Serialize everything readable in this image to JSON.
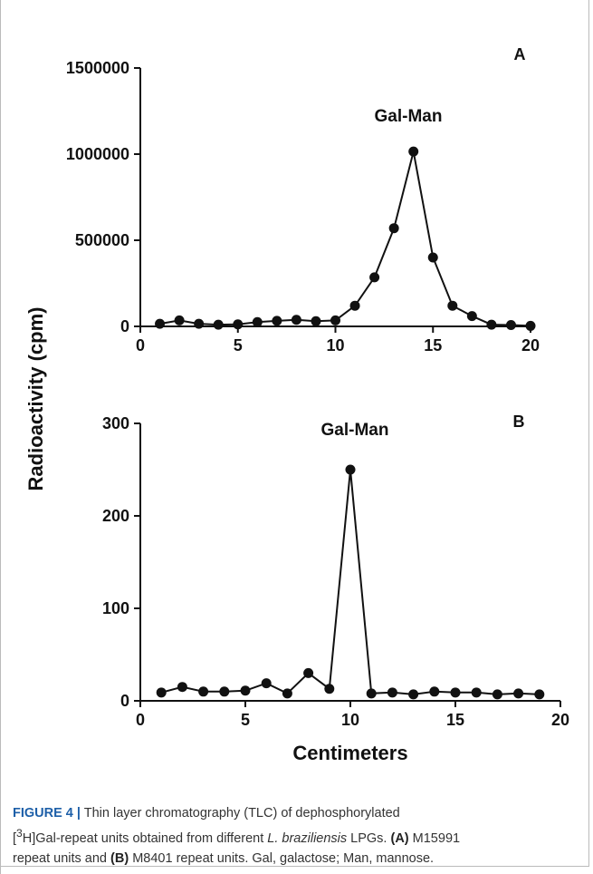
{
  "figure": {
    "ylabel": "Radioactivity (cpm)",
    "xlabel": "Centimeters",
    "caption": {
      "label": "FIGURE 4 |",
      "t1": " Thin layer chromatography (TLC) of dephosphorylated",
      "t2_pre": "[",
      "t2_sup": "3",
      "t2_post": "H]Gal-repeat units obtained from different ",
      "t2_italic": "L. braziliensis",
      "t2_end": " LPGs. ",
      "ref_a": "(A)",
      "t3": " M15991",
      "t4": "repeat units and ",
      "ref_b": "(B)",
      "t5": " M8401 repeat units. Gal, galactose; Man, mannose."
    }
  },
  "chart_data": [
    {
      "type": "line",
      "panel_label": "A",
      "annotation": "Gal-Man",
      "xlabel": "",
      "ylabel": "Radioactivity (cpm)",
      "xlim": [
        0,
        20
      ],
      "ylim": [
        0,
        1500000
      ],
      "x_ticks": [
        0,
        5,
        10,
        15,
        20
      ],
      "y_ticks": [
        0,
        500000,
        1000000,
        1500000
      ],
      "x_tick_labels": [
        "0",
        "5",
        "10",
        "15",
        "20"
      ],
      "y_tick_labels": [
        "0",
        "500000",
        "1000000",
        "1500000"
      ],
      "x": [
        1,
        2,
        3,
        4,
        5,
        6,
        7,
        8,
        9,
        10,
        11,
        12,
        13,
        14,
        15,
        16,
        17,
        18,
        19,
        20
      ],
      "y": [
        15000,
        35000,
        15000,
        10000,
        12000,
        25000,
        32000,
        38000,
        30000,
        35000,
        120000,
        285000,
        570000,
        1015000,
        400000,
        120000,
        60000,
        10000,
        8000,
        3000
      ],
      "grid": false,
      "legend": "none"
    },
    {
      "type": "line",
      "panel_label": "B",
      "annotation": "Gal-Man",
      "xlabel": "Centimeters",
      "ylabel": "",
      "xlim": [
        0,
        20
      ],
      "ylim": [
        0,
        300
      ],
      "x_ticks": [
        0,
        5,
        10,
        15,
        20
      ],
      "y_ticks": [
        0,
        100,
        200,
        300
      ],
      "x_tick_labels": [
        "0",
        "5",
        "10",
        "15",
        "20"
      ],
      "y_tick_labels": [
        "0",
        "100",
        "200",
        "300"
      ],
      "x": [
        1,
        2,
        3,
        4,
        5,
        6,
        7,
        8,
        9,
        10,
        11,
        12,
        13,
        14,
        15,
        16,
        17,
        18,
        19
      ],
      "y": [
        9,
        15,
        10,
        10,
        11,
        19,
        8,
        30,
        13,
        250,
        8,
        9,
        7,
        10,
        9,
        9,
        7,
        8,
        7
      ],
      "grid": false,
      "legend": "none"
    }
  ]
}
